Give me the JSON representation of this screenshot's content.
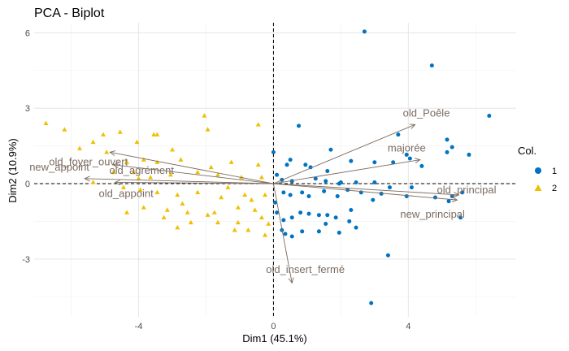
{
  "chart_data": {
    "type": "scatter",
    "title": "PCA - Biplot",
    "xlabel": "Dim1 (45.1%)",
    "ylabel": "Dim2 (10.9%)",
    "xlim": [
      -7.1,
      7.2
    ],
    "ylim": [
      -5.3,
      6.4
    ],
    "x_ticks": [
      -4,
      0,
      4
    ],
    "y_ticks": [
      -3,
      0,
      3,
      6
    ],
    "grid": true,
    "legend": {
      "title": "Col.",
      "position": "right",
      "entries": [
        "1",
        "2"
      ]
    },
    "colors": {
      "1": "#0073C2",
      "2": "#EFC000",
      "arrows": "#7b6b60"
    },
    "reference_lines": {
      "x": 0,
      "y": 0,
      "style": "dashed"
    },
    "series": [
      {
        "name": "1",
        "marker": "circle",
        "points": [
          [
            2.7,
            6.05
          ],
          [
            4.7,
            4.7
          ],
          [
            6.4,
            2.7
          ],
          [
            0.75,
            2.3
          ],
          [
            1.7,
            1.35
          ],
          [
            3.7,
            1.95
          ],
          [
            5.15,
            1.75
          ],
          [
            5.3,
            1.45
          ],
          [
            3.95,
            1.15
          ],
          [
            4.05,
            1.0
          ],
          [
            5.15,
            1.25
          ],
          [
            5.8,
            1.15
          ],
          [
            0.0,
            1.25
          ],
          [
            0.95,
            0.75
          ],
          [
            0.5,
            0.95
          ],
          [
            0.4,
            0.75
          ],
          [
            1.1,
            0.65
          ],
          [
            1.6,
            0.5
          ],
          [
            2.3,
            0.9
          ],
          [
            3.0,
            0.85
          ],
          [
            3.55,
            0.85
          ],
          [
            4.4,
            0.7
          ],
          [
            0.1,
            0.35
          ],
          [
            0.25,
            0.15
          ],
          [
            0.55,
            0.1
          ],
          [
            1.25,
            0.2
          ],
          [
            1.55,
            0.1
          ],
          [
            1.95,
            0.0
          ],
          [
            2.0,
            0.05
          ],
          [
            2.45,
            0.05
          ],
          [
            3.0,
            0.05
          ],
          [
            3.45,
            -0.15
          ],
          [
            4.1,
            -0.15
          ],
          [
            0.3,
            -0.35
          ],
          [
            0.5,
            -0.45
          ],
          [
            0.85,
            -0.35
          ],
          [
            1.05,
            -0.5
          ],
          [
            1.5,
            -0.3
          ],
          [
            1.9,
            -0.5
          ],
          [
            2.2,
            -0.25
          ],
          [
            2.6,
            -0.35
          ],
          [
            2.95,
            -0.65
          ],
          [
            3.2,
            -0.4
          ],
          [
            3.95,
            -0.5
          ],
          [
            4.8,
            -0.55
          ],
          [
            5.3,
            -0.5
          ],
          [
            5.6,
            -0.35
          ],
          [
            5.2,
            -0.7
          ],
          [
            0.05,
            -0.75
          ],
          [
            0.1,
            -1.15
          ],
          [
            0.3,
            -1.45
          ],
          [
            0.55,
            -1.35
          ],
          [
            0.8,
            -1.15
          ],
          [
            1.05,
            -1.2
          ],
          [
            1.35,
            -1.25
          ],
          [
            1.6,
            -1.25
          ],
          [
            1.85,
            -1.35
          ],
          [
            2.25,
            -1.5
          ],
          [
            2.3,
            -1.05
          ],
          [
            0.25,
            -1.85
          ],
          [
            0.35,
            -2.0
          ],
          [
            0.55,
            -2.1
          ],
          [
            0.85,
            -1.9
          ],
          [
            1.35,
            -1.9
          ],
          [
            1.95,
            -1.95
          ],
          [
            3.4,
            -2.85
          ],
          [
            2.9,
            -4.75
          ],
          [
            5.55,
            -1.35
          ],
          [
            2.45,
            -1.75
          ],
          [
            1.55,
            -1.6
          ]
        ]
      },
      {
        "name": "2",
        "marker": "triangle",
        "points": [
          [
            -6.75,
            2.4
          ],
          [
            -6.2,
            2.15
          ],
          [
            -5.35,
            1.65
          ],
          [
            -5.05,
            1.95
          ],
          [
            -4.95,
            1.25
          ],
          [
            -4.55,
            2.05
          ],
          [
            -4.05,
            1.65
          ],
          [
            -3.55,
            1.95
          ],
          [
            -3.45,
            1.95
          ],
          [
            -3.0,
            1.35
          ],
          [
            -2.05,
            2.7
          ],
          [
            -1.95,
            2.15
          ],
          [
            -0.45,
            2.35
          ],
          [
            -5.75,
            1.4
          ],
          [
            -4.35,
            0.85
          ],
          [
            -3.85,
            0.95
          ],
          [
            -3.45,
            0.85
          ],
          [
            -2.75,
            0.95
          ],
          [
            -1.85,
            0.65
          ],
          [
            -1.25,
            0.85
          ],
          [
            -0.45,
            0.75
          ],
          [
            -4.75,
            0.45
          ],
          [
            -4.15,
            0.45
          ],
          [
            -3.65,
            0.25
          ],
          [
            -3.05,
            0.35
          ],
          [
            -2.25,
            0.45
          ],
          [
            -1.65,
            0.35
          ],
          [
            -0.95,
            0.25
          ],
          [
            -0.35,
            0.25
          ],
          [
            -5.35,
            0.05
          ],
          [
            -4.45,
            -0.15
          ],
          [
            -3.95,
            -0.25
          ],
          [
            -3.45,
            -0.35
          ],
          [
            -2.85,
            -0.45
          ],
          [
            -2.25,
            -0.35
          ],
          [
            -1.55,
            -0.55
          ],
          [
            -0.85,
            -0.45
          ],
          [
            -0.25,
            -0.45
          ],
          [
            -3.85,
            -0.95
          ],
          [
            -3.15,
            -1.05
          ],
          [
            -2.55,
            -1.15
          ],
          [
            -1.75,
            -1.15
          ],
          [
            -1.05,
            -0.95
          ],
          [
            -0.55,
            -1.05
          ],
          [
            -3.25,
            -1.35
          ],
          [
            -2.45,
            -1.55
          ],
          [
            -1.65,
            -1.55
          ],
          [
            -1.05,
            -1.55
          ],
          [
            -0.35,
            -1.35
          ],
          [
            -2.85,
            -1.75
          ],
          [
            -1.15,
            -1.85
          ],
          [
            -0.75,
            -1.85
          ],
          [
            -0.25,
            -2.05
          ],
          [
            -4.35,
            -1.15
          ],
          [
            -1.95,
            -1.25
          ],
          [
            -4.0,
            0.2
          ],
          [
            -2.7,
            -0.8
          ],
          [
            -1.35,
            -0.15
          ],
          [
            -0.65,
            -0.65
          ],
          [
            -0.15,
            -1.6
          ]
        ]
      }
    ],
    "variables": [
      {
        "name": "old_Poêle",
        "x": 4.2,
        "y": 2.35
      },
      {
        "name": "majorée",
        "x": 4.35,
        "y": 0.95
      },
      {
        "name": "old_principal",
        "x": 5.5,
        "y": -0.45
      },
      {
        "name": "new_principal",
        "x": 5.45,
        "y": -0.65
      },
      {
        "name": "old_foyer_ouvert",
        "x": -4.85,
        "y": 1.25
      },
      {
        "name": "old_agrément",
        "x": -4.75,
        "y": 0.75
      },
      {
        "name": "new_appoint",
        "x": -5.6,
        "y": 0.2
      },
      {
        "name": "old_appoint",
        "x": -4.7,
        "y": 0.05
      },
      {
        "name": "old_insert_fermé",
        "x": 0.55,
        "y": -3.95
      }
    ]
  }
}
